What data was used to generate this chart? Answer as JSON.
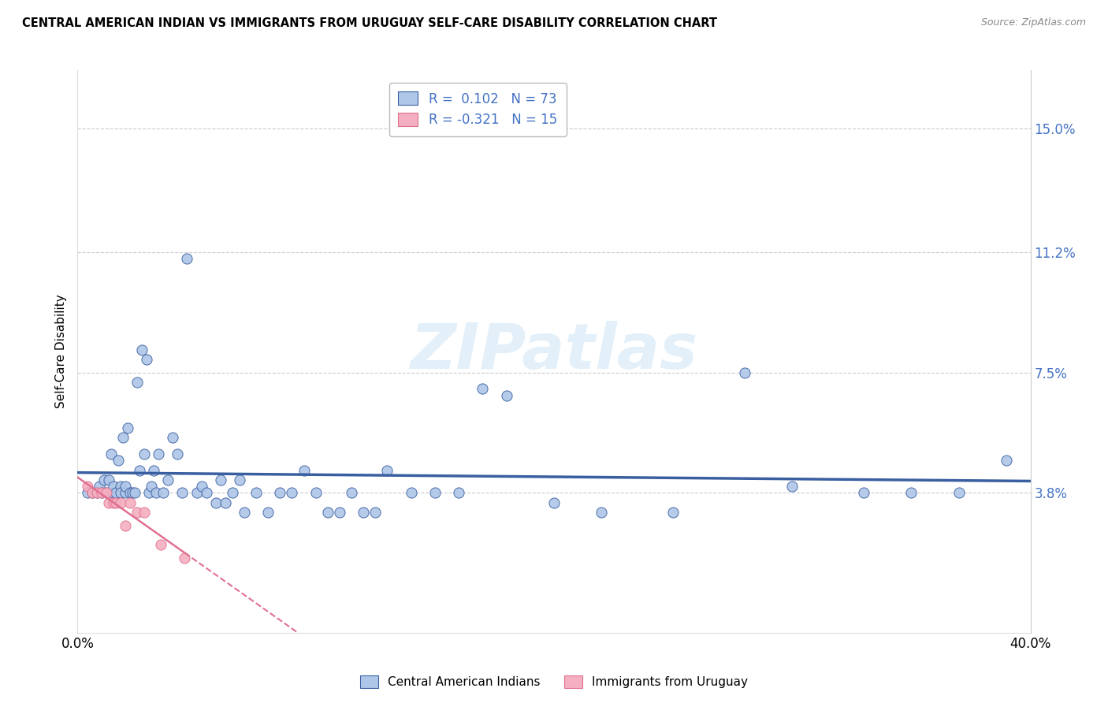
{
  "title": "CENTRAL AMERICAN INDIAN VS IMMIGRANTS FROM URUGUAY SELF-CARE DISABILITY CORRELATION CHART",
  "source": "Source: ZipAtlas.com",
  "ylabel": "Self-Care Disability",
  "yticks": [
    "15.0%",
    "11.2%",
    "7.5%",
    "3.8%"
  ],
  "ytick_vals": [
    0.15,
    0.112,
    0.075,
    0.038
  ],
  "xlim": [
    0.0,
    0.4
  ],
  "ylim": [
    -0.005,
    0.168
  ],
  "legend1_label": "Central American Indians",
  "legend2_label": "Immigrants from Uruguay",
  "r1": 0.102,
  "n1": 73,
  "r2": -0.321,
  "n2": 15,
  "color_blue": "#aec6e8",
  "color_pink": "#f4afc0",
  "line_blue": "#3a5fa0",
  "line_pink": "#e07090",
  "watermark": "ZIPatlas",
  "blue_x": [
    0.004,
    0.006,
    0.008,
    0.009,
    0.01,
    0.011,
    0.012,
    0.013,
    0.014,
    0.015,
    0.015,
    0.016,
    0.017,
    0.018,
    0.018,
    0.019,
    0.02,
    0.02,
    0.021,
    0.022,
    0.023,
    0.024,
    0.025,
    0.026,
    0.027,
    0.028,
    0.029,
    0.03,
    0.031,
    0.032,
    0.033,
    0.034,
    0.036,
    0.038,
    0.04,
    0.042,
    0.044,
    0.046,
    0.05,
    0.052,
    0.054,
    0.058,
    0.06,
    0.062,
    0.065,
    0.068,
    0.07,
    0.075,
    0.08,
    0.085,
    0.09,
    0.095,
    0.1,
    0.105,
    0.11,
    0.115,
    0.12,
    0.125,
    0.13,
    0.14,
    0.15,
    0.16,
    0.17,
    0.18,
    0.2,
    0.22,
    0.25,
    0.28,
    0.3,
    0.33,
    0.35,
    0.37,
    0.39
  ],
  "blue_y": [
    0.038,
    0.038,
    0.038,
    0.04,
    0.038,
    0.042,
    0.038,
    0.042,
    0.05,
    0.038,
    0.04,
    0.038,
    0.048,
    0.04,
    0.038,
    0.055,
    0.038,
    0.04,
    0.058,
    0.038,
    0.038,
    0.038,
    0.072,
    0.045,
    0.082,
    0.05,
    0.079,
    0.038,
    0.04,
    0.045,
    0.038,
    0.05,
    0.038,
    0.042,
    0.055,
    0.05,
    0.038,
    0.11,
    0.038,
    0.04,
    0.038,
    0.035,
    0.042,
    0.035,
    0.038,
    0.042,
    0.032,
    0.038,
    0.032,
    0.038,
    0.038,
    0.045,
    0.038,
    0.032,
    0.032,
    0.038,
    0.032,
    0.032,
    0.045,
    0.038,
    0.038,
    0.038,
    0.07,
    0.068,
    0.035,
    0.032,
    0.032,
    0.075,
    0.04,
    0.038,
    0.038,
    0.038,
    0.048
  ],
  "pink_x": [
    0.004,
    0.006,
    0.008,
    0.01,
    0.012,
    0.013,
    0.015,
    0.016,
    0.018,
    0.02,
    0.022,
    0.025,
    0.028,
    0.035,
    0.045
  ],
  "pink_y": [
    0.04,
    0.038,
    0.038,
    0.038,
    0.038,
    0.035,
    0.035,
    0.035,
    0.035,
    0.028,
    0.035,
    0.032,
    0.032,
    0.022,
    0.018
  ]
}
